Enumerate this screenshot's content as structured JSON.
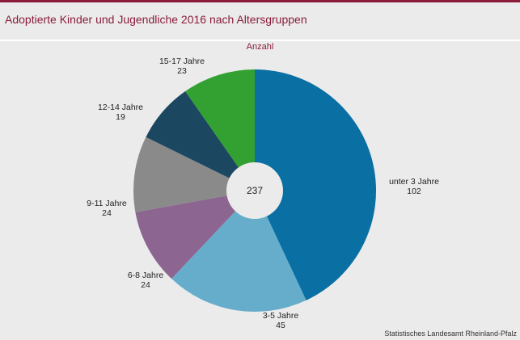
{
  "header": {
    "title": "Adoptierte Kinder und Jugendliche 2016 nach Altersgruppen"
  },
  "chart_data": {
    "type": "pie",
    "subtitle": "Anzahl",
    "total_label": "237",
    "slices": [
      {
        "label": "unter 3 Jahre",
        "value": 102,
        "color": "#0a70a3"
      },
      {
        "label": "3-5 Jahre",
        "value": 45,
        "color": "#66adcc"
      },
      {
        "label": "6-8 Jahre",
        "value": 24,
        "color": "#8c6690"
      },
      {
        "label": "9-11 Jahre",
        "value": 24,
        "color": "#8a8a8a"
      },
      {
        "label": "12-14 Jahre",
        "value": 19,
        "color": "#1b4761"
      },
      {
        "label": "15-17 Jahre",
        "value": 23,
        "color": "#33a032"
      }
    ]
  },
  "footer": {
    "source": "Statistisches Landesamt Rheinland-Pfalz"
  }
}
